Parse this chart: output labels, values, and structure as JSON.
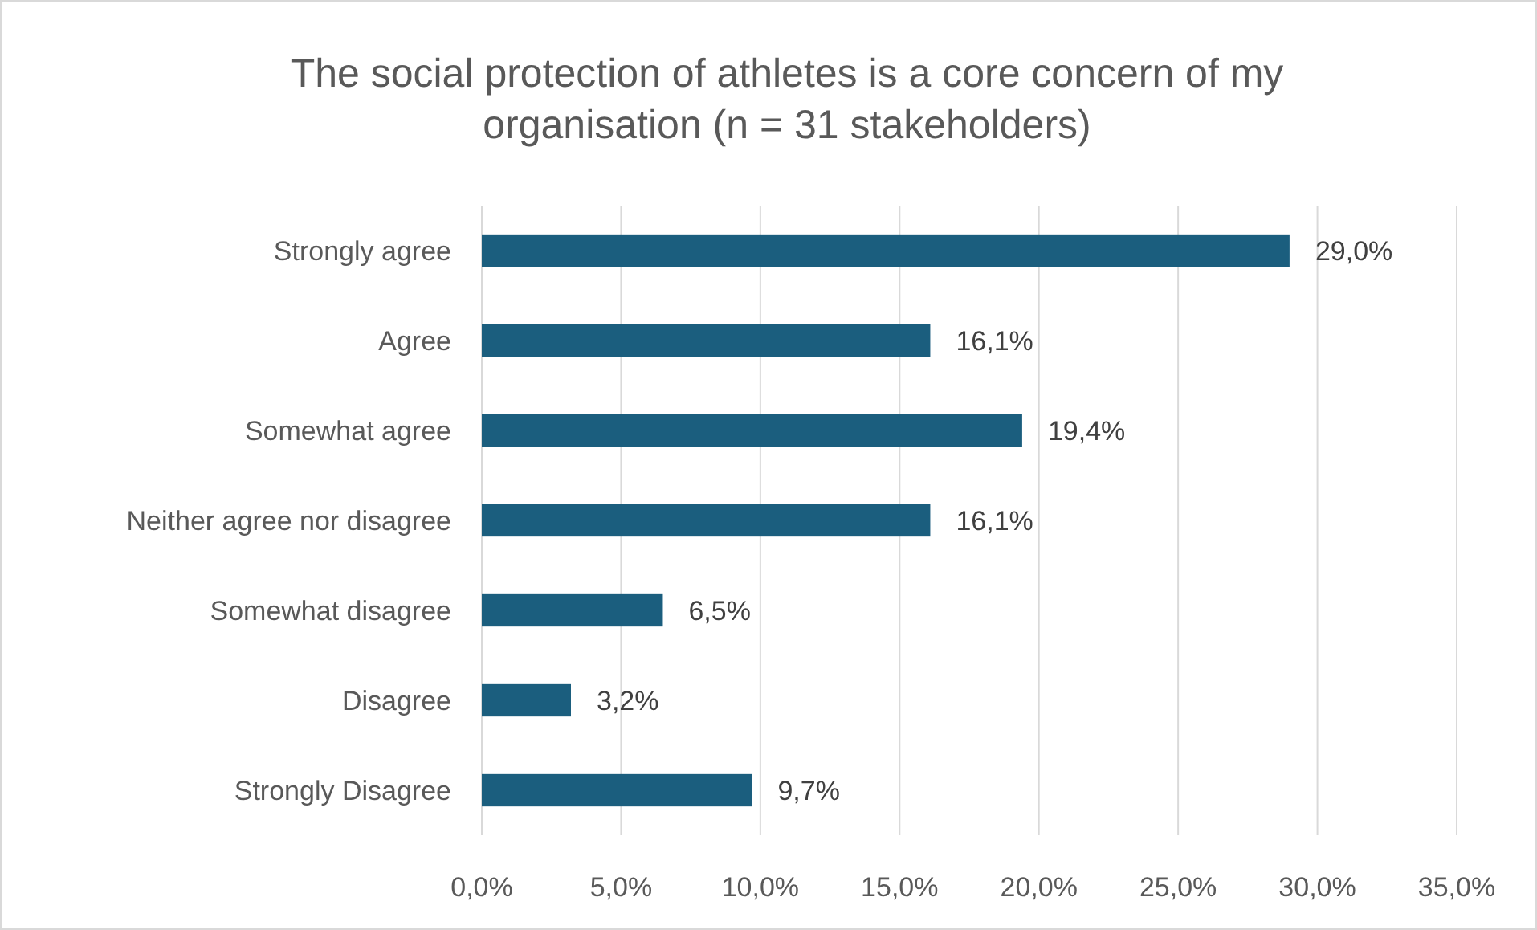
{
  "chart_data": {
    "type": "bar",
    "orientation": "horizontal",
    "title": "The social protection of athletes is a core concern of my organisation (n = 31 stakeholders)",
    "categories": [
      "Strongly agree",
      "Agree",
      "Somewhat agree",
      "Neither agree nor disagree",
      "Somewhat disagree",
      "Disagree",
      "Strongly Disagree"
    ],
    "values": [
      29.0,
      16.1,
      19.4,
      16.1,
      6.5,
      3.2,
      9.7
    ],
    "value_labels": [
      "29,0%",
      "16,1%",
      "19,4%",
      "16,1%",
      "6,5%",
      "3,2%",
      "9,7%"
    ],
    "color": "#1b5e7e",
    "xlim": [
      0,
      35
    ],
    "xticks": [
      {
        "value": 0,
        "label": "0,0%"
      },
      {
        "value": 5,
        "label": "5,0%"
      },
      {
        "value": 10,
        "label": "10,0%"
      },
      {
        "value": 15,
        "label": "15,0%"
      },
      {
        "value": 20,
        "label": "20,0%"
      },
      {
        "value": 25,
        "label": "25,0%"
      },
      {
        "value": 30,
        "label": "30,0%"
      },
      {
        "value": 35,
        "label": "35,0%"
      }
    ],
    "grid": "x"
  }
}
